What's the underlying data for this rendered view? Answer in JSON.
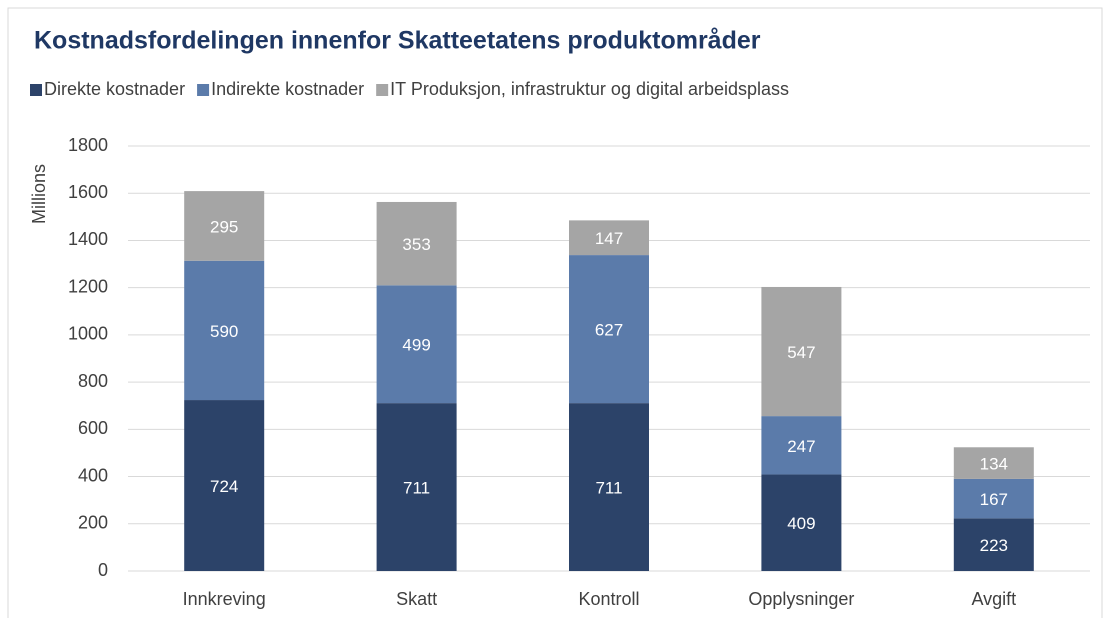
{
  "chart_data": {
    "type": "stacked-bar",
    "title": "Kostnadsfordelingen innenfor Skatteetatens produktområder",
    "y_label": "Millions",
    "categories": [
      "Innkreving",
      "Skatt",
      "Kontroll",
      "Opplysninger",
      "Avgift"
    ],
    "series": [
      {
        "name": "Direkte kostnader",
        "color": "#2c4369",
        "values": [
          724,
          711,
          711,
          409,
          223
        ]
      },
      {
        "name": "Indirekte kostnader",
        "color": "#5b7baa",
        "values": [
          590,
          499,
          627,
          247,
          167
        ]
      },
      {
        "name": "IT Produksjon, infrastruktur og digital arbeidsplass",
        "color": "#a5a5a5",
        "values": [
          295,
          353,
          147,
          547,
          134
        ]
      }
    ],
    "ylim": [
      0,
      1800
    ],
    "yticks": [
      0,
      200,
      400,
      600,
      800,
      1000,
      1200,
      1400,
      1600,
      1800
    ],
    "grid": true,
    "legend": "top-left"
  }
}
